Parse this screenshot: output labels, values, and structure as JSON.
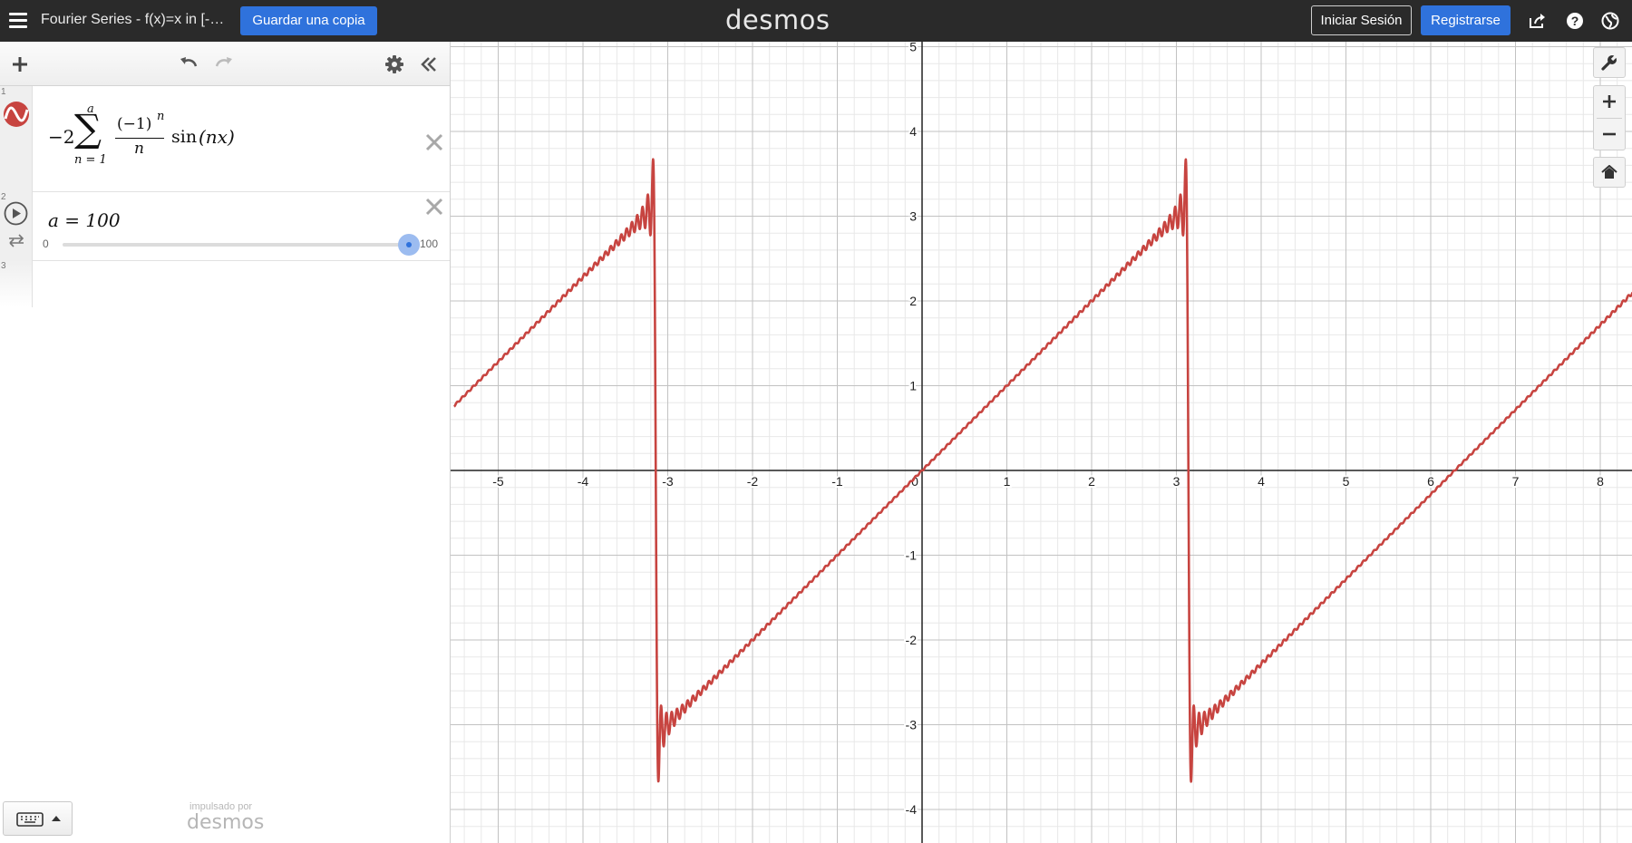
{
  "header": {
    "title": "Fourier Series - f(x)=x in [-…",
    "save_copy_label": "Guardar una copia",
    "brand": "desmos",
    "login_label": "Iniciar Sesión",
    "signup_label": "Registrarse",
    "icons": [
      "menu-icon",
      "share-icon",
      "help-icon",
      "language-globe-icon"
    ]
  },
  "expression_panel": {
    "toolbar_icons": [
      "add-icon",
      "undo-icon",
      "redo-icon",
      "gear-icon",
      "collapse-chevrons-icon"
    ],
    "expressions": [
      {
        "index": "1",
        "icon": "graph-line-icon",
        "color": "#c74440",
        "latex_parts": {
          "coef": "−2",
          "sum_upper": "a",
          "sum_lower": "n = 1",
          "frac_num": "(−1)",
          "frac_num_exp": "n",
          "frac_den": "n",
          "func": "sin",
          "func_arg": "(nx)"
        }
      },
      {
        "index": "2",
        "icon": "play-icon",
        "latex": "a = 100",
        "slider": {
          "min_label": "0",
          "max_label": "100",
          "value": 100,
          "min": 0,
          "max": 100
        }
      },
      {
        "index": "3"
      }
    ],
    "powered_by_small": "impulsado por",
    "powered_by_logo": "desmos"
  },
  "graph": {
    "tools": [
      "wrench-icon",
      "zoom-in-icon",
      "zoom-out-icon",
      "home-icon"
    ],
    "curve_color": "#c74440"
  },
  "chart_data": {
    "type": "line",
    "title": "",
    "xlabel": "",
    "ylabel": "",
    "xlim": [
      -5.52,
      8.38
    ],
    "ylim": [
      -4.43,
      5.02
    ],
    "x_ticks": [
      -5,
      -4,
      -3,
      -2,
      -1,
      0,
      1,
      2,
      3,
      4,
      5,
      6,
      7,
      8
    ],
    "y_ticks": [
      -4,
      -3,
      -2,
      -1,
      1,
      2,
      3,
      4,
      5
    ],
    "x_tick_labels": [
      "-5",
      "-4",
      "-3",
      "-2",
      "-1",
      "0",
      "1",
      "2",
      "3",
      "4",
      "5",
      "6",
      "7",
      "8"
    ],
    "y_tick_labels": [
      "-4",
      "-3",
      "-2",
      "-1",
      "1",
      "2",
      "3",
      "4",
      "5"
    ],
    "grid": true,
    "series": [
      {
        "function": "fourier_partial_sum",
        "terms": 100
      }
    ]
  }
}
